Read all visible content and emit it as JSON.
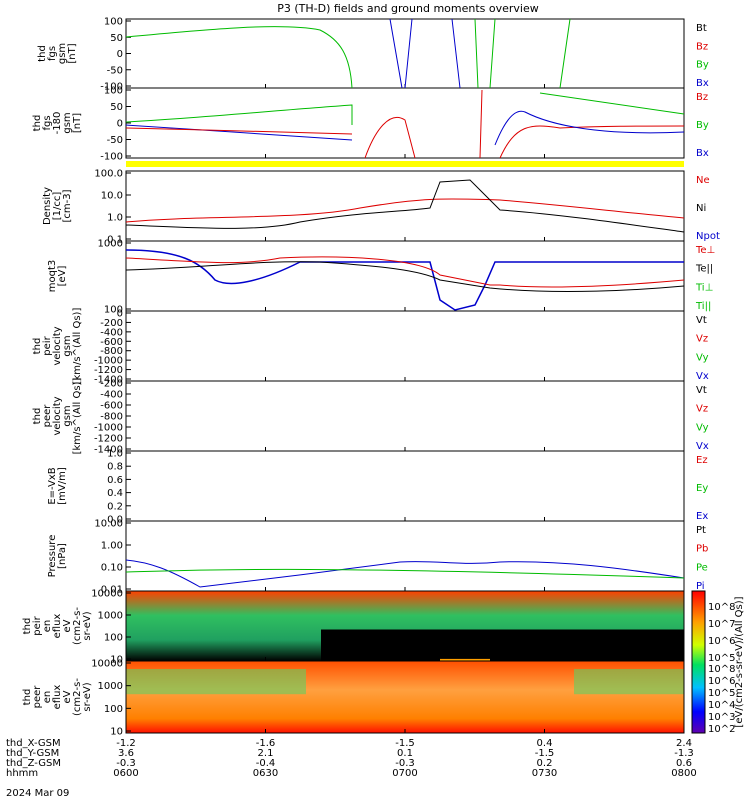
{
  "chart_data": {
    "type": "line",
    "title": "P3 (TH-D) fields and ground moments overview",
    "date_label": "2024 Mar 09",
    "x_ticks": [
      "0600",
      "0630",
      "0700",
      "0730",
      "0800"
    ],
    "orbit_rows": [
      {
        "label": "thd_X-GSM",
        "values": [
          "-1.2",
          "-1.6",
          "-1.5",
          "0.4",
          "2.4"
        ]
      },
      {
        "label": "thd_Y-GSM",
        "values": [
          "3.6",
          "2.1",
          "0.1",
          "-1.5",
          "-1.3"
        ]
      },
      {
        "label": "thd_Z-GSM",
        "values": [
          "-0.3",
          "-0.4",
          "-0.3",
          "0.2",
          "0.6"
        ]
      },
      {
        "label": "hhmm",
        "values": [
          "0600",
          "0630",
          "0700",
          "0730",
          "0800"
        ]
      }
    ],
    "panels": [
      {
        "id": "fgs",
        "ylabel": [
          "thd",
          "fgs",
          "gsm",
          "[nT]"
        ],
        "ytick_labels": [
          "100",
          "50",
          "0",
          "-50",
          "-100"
        ],
        "ylim": [
          -100,
          100
        ],
        "legend": [
          {
            "text": "Bt",
            "color": "#000000"
          },
          {
            "text": "Bz",
            "color": "#dd0000"
          },
          {
            "text": "By",
            "color": "#00bb00"
          },
          {
            "text": "Bx",
            "color": "#0000cc"
          }
        ]
      },
      {
        "id": "fgs_dsl",
        "ylabel": [
          "thd",
          "fgs",
          "-180",
          "gsm",
          "[nT]"
        ],
        "ytick_labels": [
          "100",
          "50",
          "0",
          "-50",
          "-100"
        ],
        "ylim": [
          -120,
          120
        ],
        "legend": [
          {
            "text": "Bz",
            "color": "#dd0000"
          },
          {
            "text": "By",
            "color": "#00bb00"
          },
          {
            "text": "Bx",
            "color": "#0000cc"
          }
        ]
      },
      {
        "id": "density",
        "ylabel": [
          "Density",
          "[1/cc]",
          "[cm-3]"
        ],
        "ytick_labels": [
          "100.0",
          "10.0",
          "1.0",
          "0.1"
        ],
        "ylim": [
          0.05,
          200
        ],
        "scale": "log",
        "legend": [
          {
            "text": "Ne",
            "color": "#dd0000"
          },
          {
            "text": "Ni",
            "color": "#000000"
          },
          {
            "text": "Npot",
            "color": "#0000cc"
          }
        ]
      },
      {
        "id": "temp",
        "ylabel": [
          "moqt3",
          "[eV]"
        ],
        "ytick_labels": [
          "1000",
          "100"
        ],
        "ylim": [
          8,
          5000
        ],
        "scale": "log",
        "legend": [
          {
            "text": "Te⊥",
            "color": "#dd0000"
          },
          {
            "text": "Te||",
            "color": "#000000"
          },
          {
            "text": "Ti⊥",
            "color": "#00bb00"
          },
          {
            "text": "Ti||",
            "color": "#00bb00"
          }
        ]
      },
      {
        "id": "peir_vel",
        "ylabel": [
          "thd",
          "peir",
          "velocity",
          "gsm",
          "[km/s^(All Qs)]"
        ],
        "ytick_labels": [
          "0",
          "-200",
          "-400",
          "-600",
          "-800",
          "-1000",
          "-1200",
          "-1400"
        ],
        "ylim": [
          -1400,
          0
        ],
        "legend": [
          {
            "text": "Vt",
            "color": "#000000"
          },
          {
            "text": "Vz",
            "color": "#dd0000"
          },
          {
            "text": "Vy",
            "color": "#00bb00"
          },
          {
            "text": "Vx",
            "color": "#0000cc"
          }
        ]
      },
      {
        "id": "peer_vel",
        "ylabel": [
          "thd",
          "peer",
          "velocity",
          "gsm",
          "[km/s^(All Qs)]"
        ],
        "ytick_labels": [
          "-200",
          "-400",
          "-600",
          "-800",
          "-1000",
          "-1200",
          "-1400"
        ],
        "ylim": [
          -1400,
          0
        ],
        "legend": [
          {
            "text": "Vt",
            "color": "#000000"
          },
          {
            "text": "Vz",
            "color": "#dd0000"
          },
          {
            "text": "Vy",
            "color": "#00bb00"
          },
          {
            "text": "Vx",
            "color": "#0000cc"
          }
        ]
      },
      {
        "id": "efield",
        "ylabel": [
          "E=-VxB",
          "[mV/m]"
        ],
        "ytick_labels": [
          "1.0",
          "0.8",
          "0.6",
          "0.4",
          "0.2",
          "0.0"
        ],
        "ylim": [
          0,
          1
        ],
        "legend": [
          {
            "text": "Ez",
            "color": "#dd0000"
          },
          {
            "text": "Ey",
            "color": "#00bb00"
          },
          {
            "text": "Ex",
            "color": "#0000cc"
          }
        ]
      },
      {
        "id": "pressure",
        "ylabel": [
          "Pressure",
          "[nPa]"
        ],
        "ytick_labels": [
          "10.00",
          "1.00",
          "0.10",
          "0.01"
        ],
        "ylim": [
          0.005,
          30
        ],
        "scale": "log",
        "legend": [
          {
            "text": "Pt",
            "color": "#000000"
          },
          {
            "text": "Pb",
            "color": "#dd0000"
          },
          {
            "text": "Pe",
            "color": "#00bb00"
          },
          {
            "text": "Pi",
            "color": "#0000cc"
          }
        ]
      },
      {
        "id": "peir_en",
        "ylabel": [
          "thd",
          "peir",
          "en",
          "eflux",
          "eV",
          "(cm2-s-",
          "sr-eV)"
        ],
        "ytick_labels": [
          "10000",
          "1000",
          "100",
          "10"
        ],
        "scale": "log"
      },
      {
        "id": "peer_en",
        "ylabel": [
          "thd",
          "peer",
          "en",
          "eflux",
          "eV",
          "(cm2-s-",
          "sr-eV)"
        ],
        "ytick_labels": [
          "10000",
          "1000",
          "100",
          "10"
        ],
        "scale": "log"
      }
    ],
    "colorbar": {
      "label": "[eV/(cm2-s-sr-eV)/(All Qs)]",
      "ticks_top": [
        "10^8",
        "10^7",
        "10^6",
        "10^5"
      ],
      "ticks_bottom": [
        "10^8",
        "10^6",
        "10^5",
        "10^4",
        "10^3",
        "10^2"
      ]
    }
  }
}
